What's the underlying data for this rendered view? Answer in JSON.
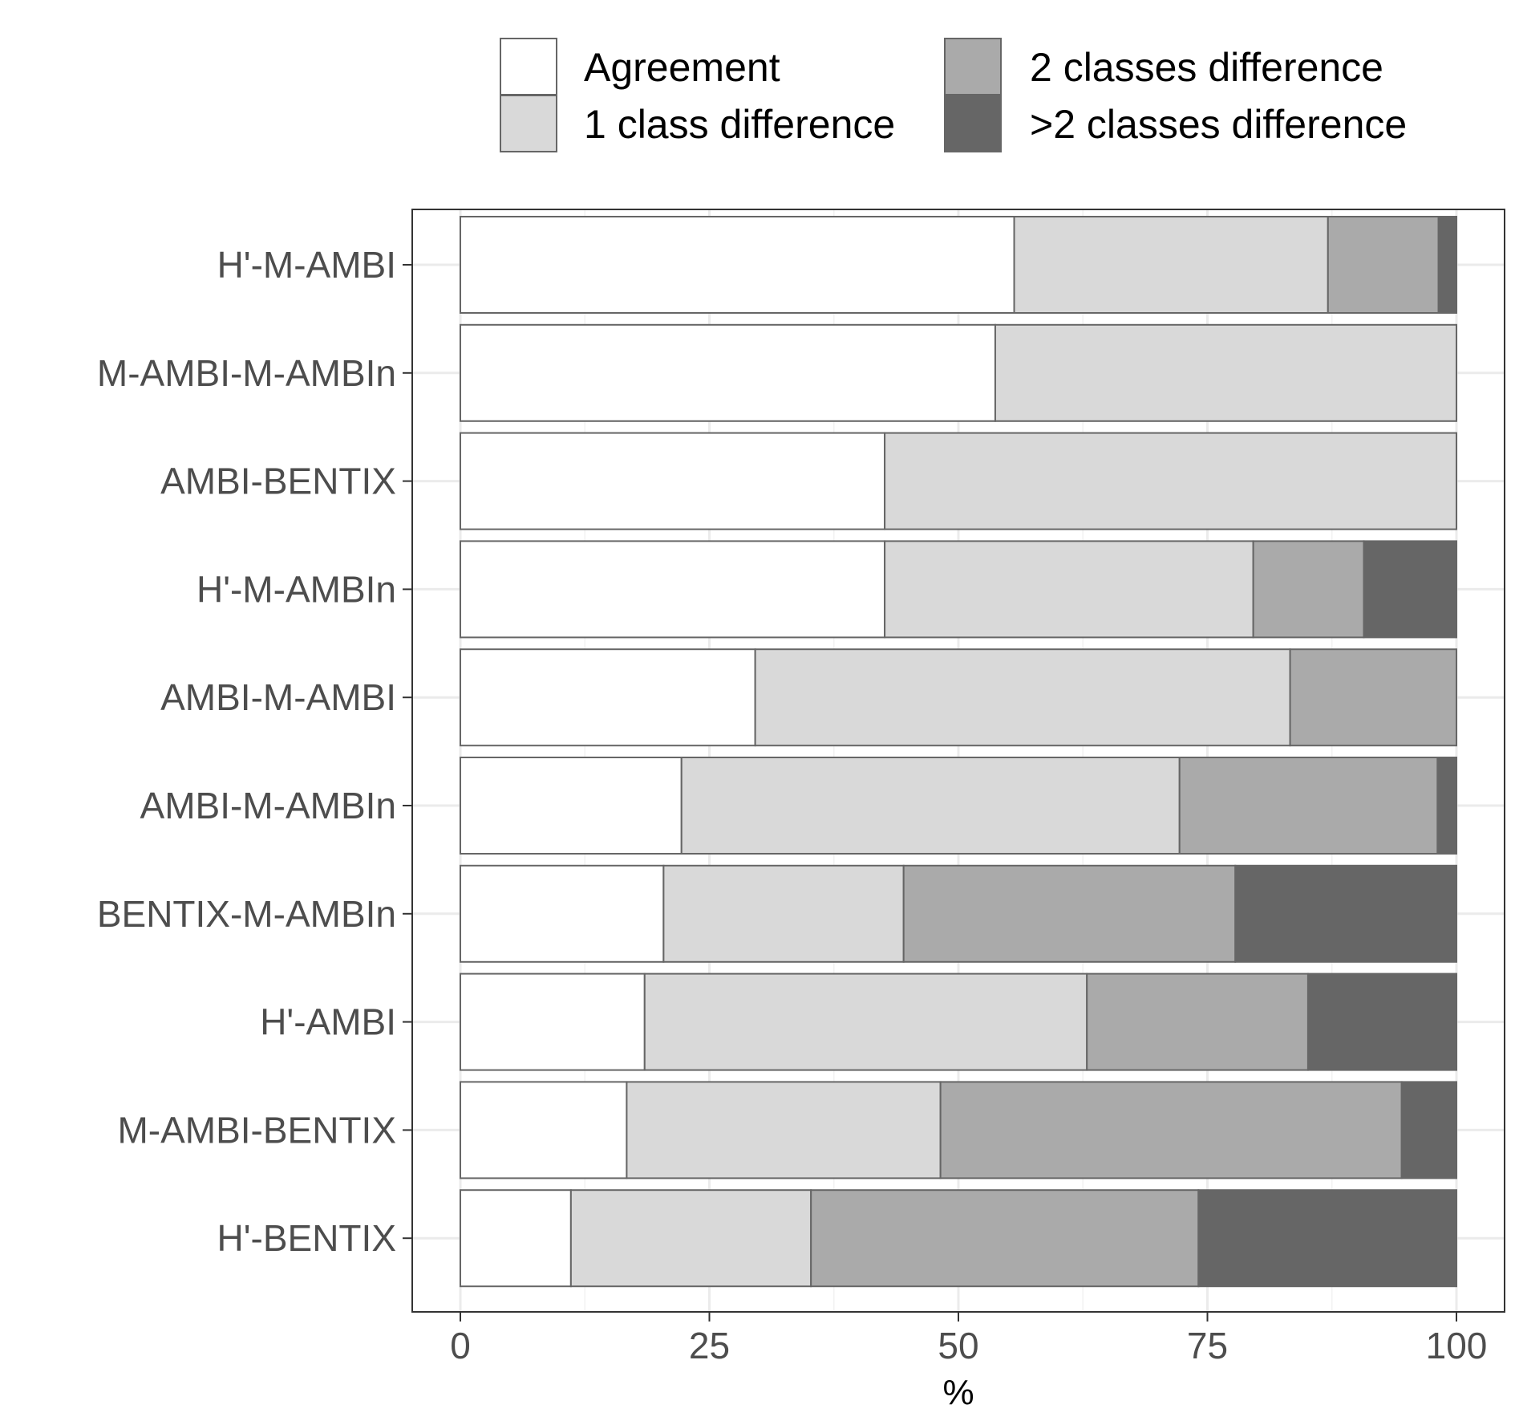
{
  "chart_data": {
    "type": "bar",
    "orientation": "horizontal",
    "stacked": true,
    "title": "",
    "xlabel": "%",
    "ylabel": "",
    "xlim": [
      0,
      100
    ],
    "x_ticks": [
      0,
      25,
      50,
      75,
      100
    ],
    "grid": true,
    "legend_position": "top",
    "categories": [
      "H'-M-AMBI",
      "M-AMBI-M-AMBIn",
      "AMBI-BENTIX",
      "H'-M-AMBIn",
      "AMBI-M-AMBI",
      "AMBI-M-AMBIn",
      "BENTIX-M-AMBIn",
      "H'-AMBI",
      "M-AMBI-BENTIX",
      "H'-BENTIX"
    ],
    "series": [
      {
        "name": "Agreement",
        "color": "#ffffff",
        "values": [
          55.6,
          53.7,
          42.6,
          42.6,
          29.6,
          22.2,
          20.4,
          18.5,
          16.7,
          11.1
        ]
      },
      {
        "name": "1 class difference",
        "color": "#d9d9d9",
        "values": [
          31.5,
          46.3,
          57.4,
          37.0,
          53.7,
          50.0,
          24.1,
          44.4,
          31.5,
          24.1
        ]
      },
      {
        "name": "2 classes difference",
        "color": "#aaaaaa",
        "values": [
          11.1,
          0,
          0,
          11.1,
          16.7,
          25.9,
          33.3,
          22.2,
          46.3,
          38.9
        ]
      },
      {
        "name": ">2 classes difference",
        "color": "#666666",
        "values": [
          1.8,
          0,
          0,
          9.3,
          0,
          1.9,
          22.2,
          14.9,
          5.5,
          25.9
        ]
      }
    ]
  }
}
